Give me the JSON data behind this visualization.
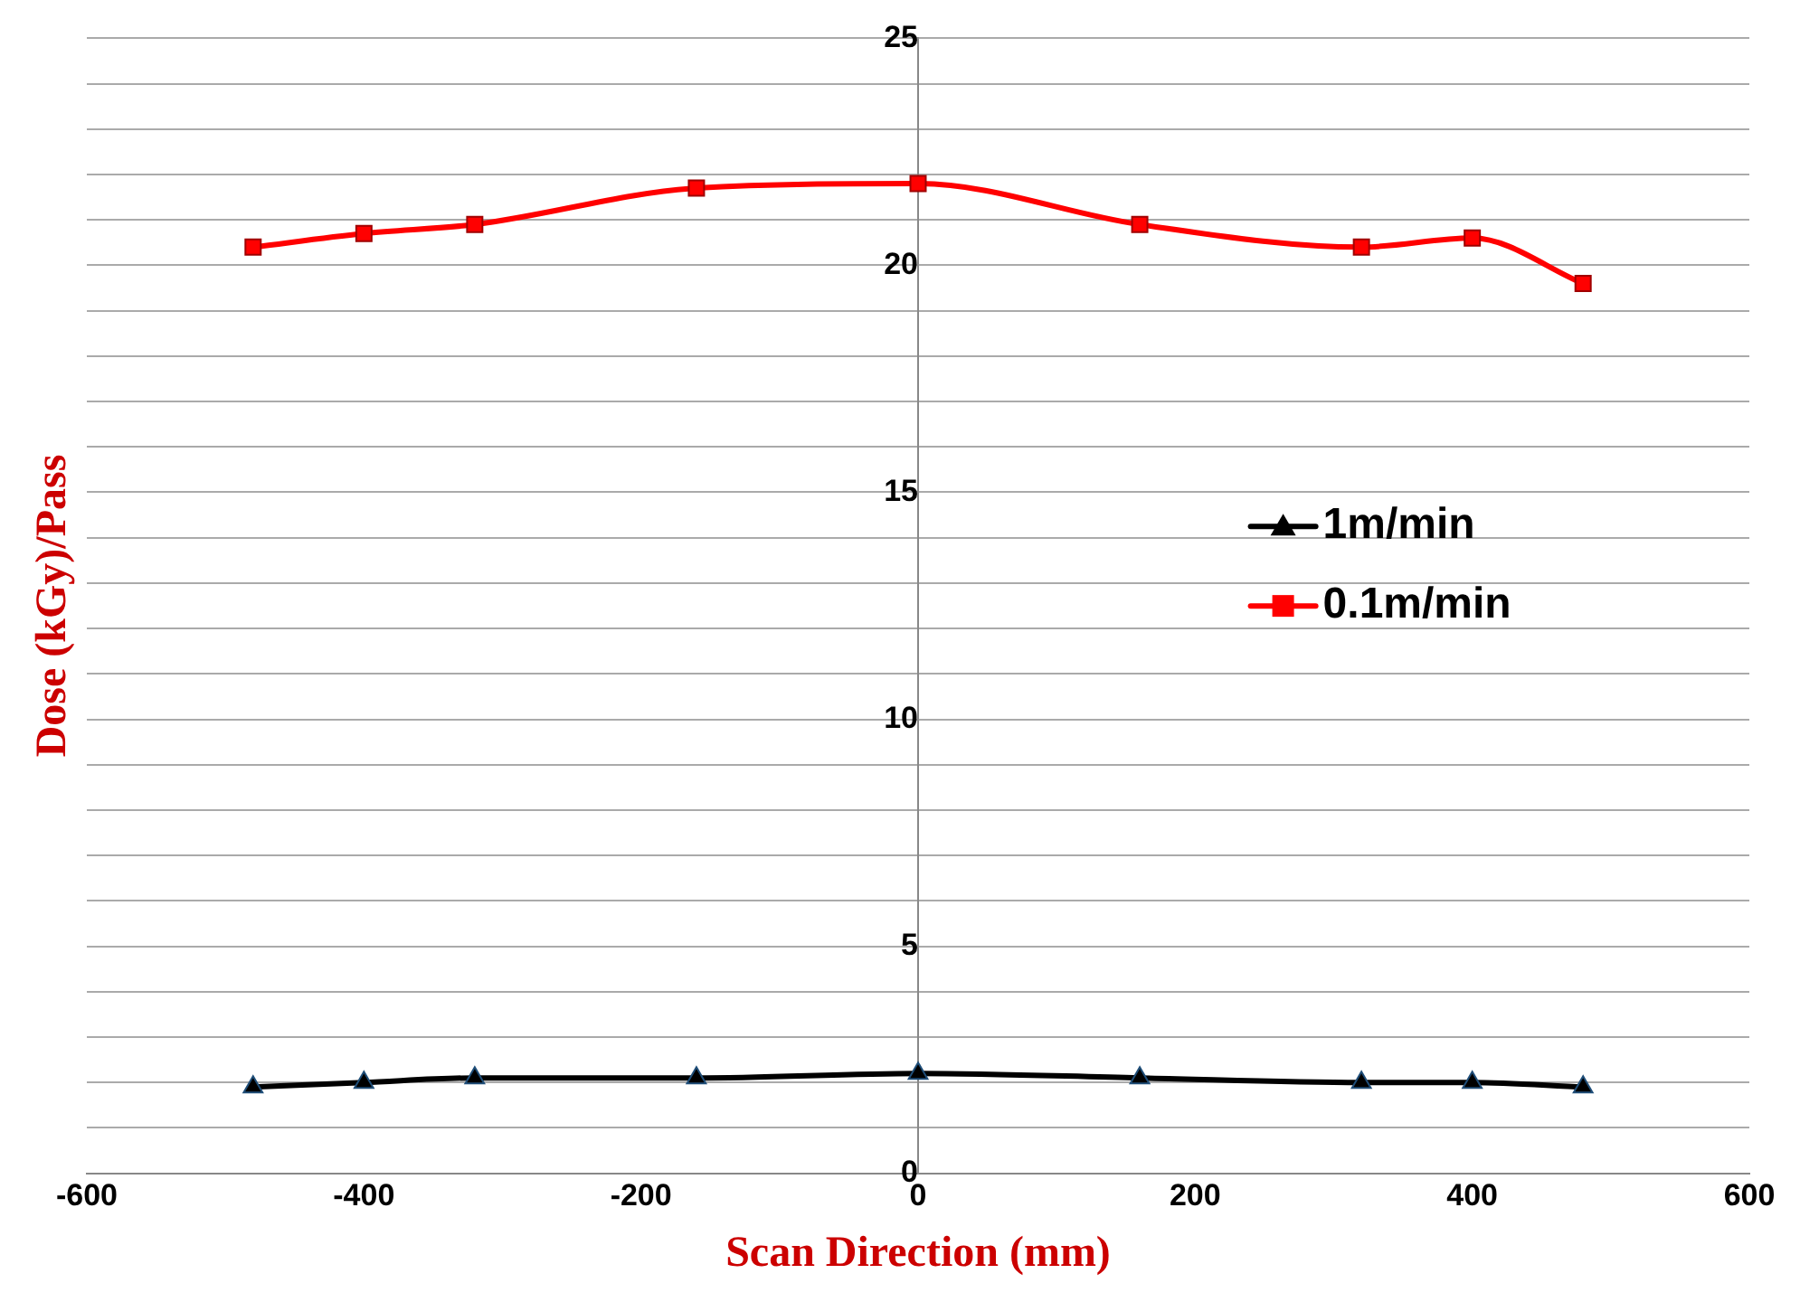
{
  "chart_data": {
    "type": "line",
    "xlabel": "Scan Direction (mm)",
    "ylabel": "Dose (kGy)/Pass",
    "x": [
      -480,
      -400,
      -320,
      -160,
      0,
      160,
      320,
      400,
      480
    ],
    "series": [
      {
        "name": "1m/min",
        "color": "#000000",
        "marker": "triangle",
        "values": [
          1.9,
          2.0,
          2.1,
          2.1,
          2.2,
          2.1,
          2.0,
          2.0,
          1.9
        ]
      },
      {
        "name": "0.1m/min",
        "color": "#ff0000",
        "marker": "square",
        "values": [
          20.4,
          20.7,
          20.9,
          21.7,
          21.8,
          20.9,
          20.4,
          20.6,
          19.6
        ]
      }
    ],
    "xlim": [
      -600,
      600
    ],
    "xticks": [
      -600,
      -400,
      -200,
      0,
      200,
      400,
      600
    ],
    "ylim": [
      0,
      25
    ],
    "yticks": [
      0,
      {
        "value": 1,
        "label": null
      },
      {
        "value": 2,
        "label": null
      },
      {
        "value": 3,
        "label": null
      },
      {
        "value": 4,
        "label": null
      },
      5,
      {
        "value": 6,
        "label": null
      },
      {
        "value": 7,
        "label": null
      },
      {
        "value": 8,
        "label": null
      },
      {
        "value": 9,
        "label": null
      },
      10,
      {
        "value": 11,
        "label": null
      },
      {
        "value": 12,
        "label": null
      },
      {
        "value": 13,
        "label": null
      },
      {
        "value": 14,
        "label": null
      },
      15,
      {
        "value": 16,
        "label": null
      },
      {
        "value": 17,
        "label": null
      },
      {
        "value": 18,
        "label": null
      },
      {
        "value": 19,
        "label": null
      },
      20,
      {
        "value": 21,
        "label": null
      },
      {
        "value": 22,
        "label": null
      },
      {
        "value": 23,
        "label": null
      },
      {
        "value": 24,
        "label": null
      },
      25
    ],
    "grid": "y",
    "legend": "right"
  }
}
